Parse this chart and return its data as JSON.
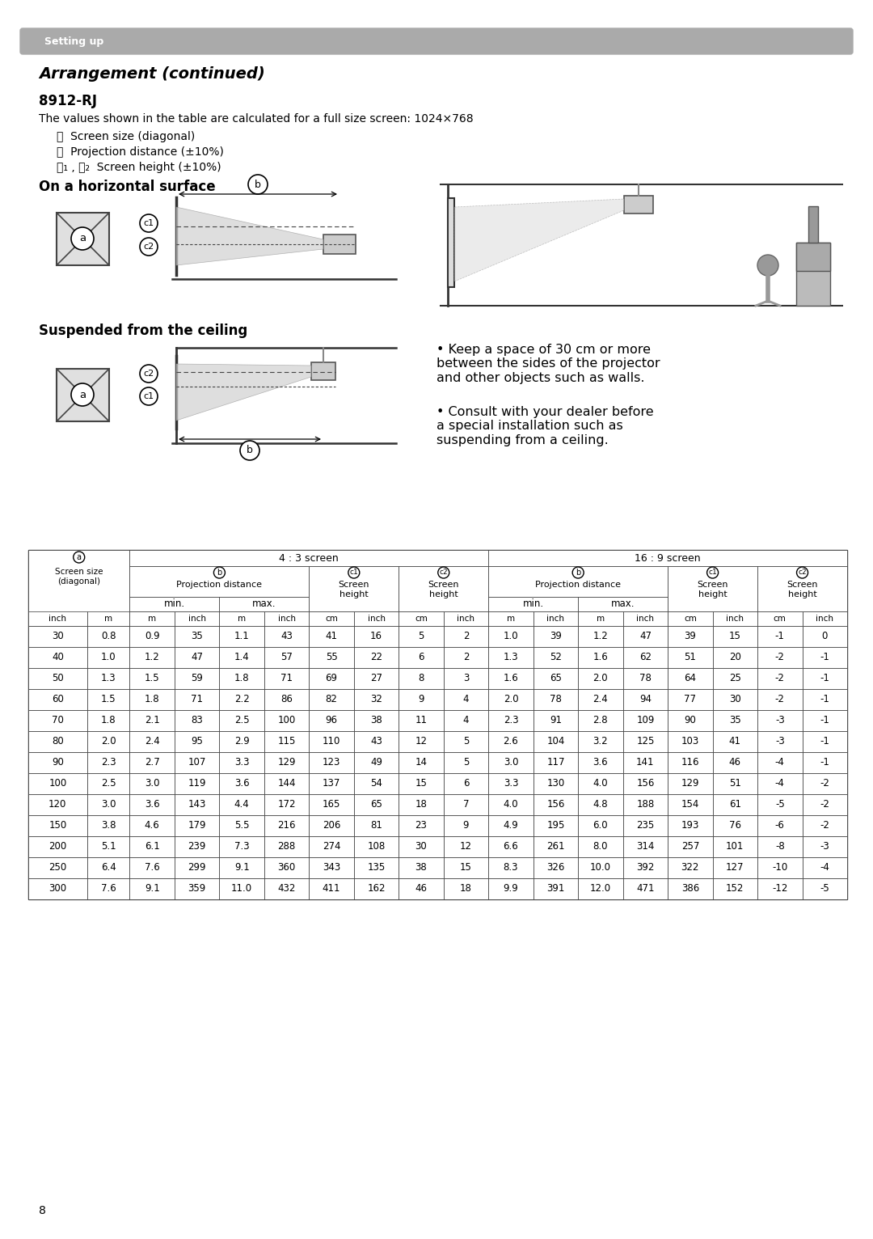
{
  "page_bg": "#ffffff",
  "header_bg": "#aaaaaa",
  "header_text": "Setting up",
  "title": "Arrangement (continued)",
  "subtitle": "8912-RJ",
  "description": "The values shown in the table are calculated for a full size screen: 1024×768",
  "label_a": "ⓐ  Screen size (diagonal)",
  "label_b": "ⓑ  Projection distance (±10%)",
  "label_c": "ⓒ₁ , ⓒ₂  Screen height (±10%)",
  "section1": "On a horizontal surface",
  "section2": "Suspended from the ceiling",
  "note1": "• Keep a space of 30 cm or more\nbetween the sides of the projector\nand other objects such as walls.",
  "note2": "• Consult with your dealer before\na special installation such as\nsuspending from a ceiling.",
  "page_number": "8",
  "units_43": [
    "inch",
    "m",
    "m",
    "inch",
    "m",
    "inch",
    "cm",
    "inch",
    "cm",
    "inch"
  ],
  "units_169": [
    "m",
    "inch",
    "m",
    "inch",
    "cm",
    "inch",
    "cm",
    "inch"
  ],
  "table_data": [
    [
      30,
      0.8,
      0.9,
      35,
      1.1,
      43,
      41,
      16,
      5,
      2,
      1.0,
      39,
      1.2,
      47,
      39,
      15,
      -1,
      0
    ],
    [
      40,
      1.0,
      1.2,
      47,
      1.4,
      57,
      55,
      22,
      6,
      2,
      1.3,
      52,
      1.6,
      62,
      51,
      20,
      -2,
      -1
    ],
    [
      50,
      1.3,
      1.5,
      59,
      1.8,
      71,
      69,
      27,
      8,
      3,
      1.6,
      65,
      2.0,
      78,
      64,
      25,
      -2,
      -1
    ],
    [
      60,
      1.5,
      1.8,
      71,
      2.2,
      86,
      82,
      32,
      9,
      4,
      2.0,
      78,
      2.4,
      94,
      77,
      30,
      -2,
      -1
    ],
    [
      70,
      1.8,
      2.1,
      83,
      2.5,
      100,
      96,
      38,
      11,
      4,
      2.3,
      91,
      2.8,
      109,
      90,
      35,
      -3,
      -1
    ],
    [
      80,
      2.0,
      2.4,
      95,
      2.9,
      115,
      110,
      43,
      12,
      5,
      2.6,
      104,
      3.2,
      125,
      103,
      41,
      -3,
      -1
    ],
    [
      90,
      2.3,
      2.7,
      107,
      3.3,
      129,
      123,
      49,
      14,
      5,
      3.0,
      117,
      3.6,
      141,
      116,
      46,
      -4,
      -1
    ],
    [
      100,
      2.5,
      3.0,
      119,
      3.6,
      144,
      137,
      54,
      15,
      6,
      3.3,
      130,
      4.0,
      156,
      129,
      51,
      -4,
      -2
    ],
    [
      120,
      3.0,
      3.6,
      143,
      4.4,
      172,
      165,
      65,
      18,
      7,
      4.0,
      156,
      4.8,
      188,
      154,
      61,
      -5,
      -2
    ],
    [
      150,
      3.8,
      4.6,
      179,
      5.5,
      216,
      206,
      81,
      23,
      9,
      4.9,
      195,
      6.0,
      235,
      193,
      76,
      -6,
      -2
    ],
    [
      200,
      5.1,
      6.1,
      239,
      7.3,
      288,
      274,
      108,
      30,
      12,
      6.6,
      261,
      8.0,
      314,
      257,
      101,
      -8,
      -3
    ],
    [
      250,
      6.4,
      7.6,
      299,
      9.1,
      360,
      343,
      135,
      38,
      15,
      8.3,
      326,
      10.0,
      392,
      322,
      127,
      -10,
      -4
    ],
    [
      300,
      7.6,
      9.1,
      359,
      11.0,
      432,
      411,
      162,
      46,
      18,
      9.9,
      391,
      12.0,
      471,
      386,
      152,
      -12,
      -5
    ]
  ]
}
